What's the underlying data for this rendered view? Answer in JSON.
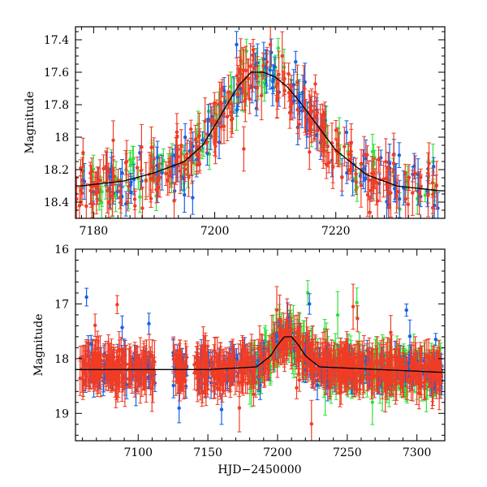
{
  "chart_data": [
    {
      "type": "scatter",
      "panel": "top",
      "title": "",
      "xlabel": "",
      "ylabel": "Magnitude",
      "xlim": [
        7177,
        7238
      ],
      "ylim": [
        18.5,
        17.32
      ],
      "y_inverted": true,
      "xticks": [
        7180,
        7200,
        7220
      ],
      "yticks": [
        17.4,
        17.6,
        17.8,
        18,
        18.2,
        18.4
      ],
      "xtick_labels": [
        "7180",
        "7200",
        "7220"
      ],
      "ytick_labels": [
        "17.4",
        "17.6",
        "17.8",
        "18",
        "18.2",
        "18.4"
      ],
      "series": [
        {
          "name": "red",
          "color": "#f03c24",
          "errorbars": true,
          "x_range": [
            7177,
            7237
          ],
          "typical_error": 0.1
        },
        {
          "name": "blue",
          "color": "#1560e8",
          "errorbars": true,
          "x_range": [
            7178,
            7237
          ],
          "typical_error": 0.08
        },
        {
          "name": "green",
          "color": "#33e03a",
          "errorbars": true,
          "x_range": [
            7178,
            7237
          ],
          "typical_error": 0.08
        }
      ],
      "model_curve": {
        "name": "model",
        "color": "#000000",
        "x": [
          7178,
          7185,
          7190,
          7195,
          7198,
          7200,
          7202,
          7204,
          7206,
          7208,
          7210,
          7212,
          7214,
          7216,
          7218,
          7220,
          7225,
          7230,
          7237
        ],
        "y": [
          18.3,
          18.27,
          18.22,
          18.15,
          18.05,
          17.93,
          17.8,
          17.68,
          17.6,
          17.6,
          17.63,
          17.69,
          17.78,
          17.88,
          17.98,
          18.08,
          18.23,
          18.3,
          18.33
        ]
      }
    },
    {
      "type": "scatter",
      "panel": "bottom",
      "title": "",
      "xlabel": "HJD−2450000",
      "ylabel": "Magnitude",
      "xlim": [
        7055,
        7320
      ],
      "ylim": [
        19.5,
        16
      ],
      "y_inverted": true,
      "xticks": [
        7100,
        7150,
        7200,
        7250,
        7300
      ],
      "yticks": [
        16,
        17,
        18,
        19
      ],
      "xtick_labels": [
        "7100",
        "7150",
        "7200",
        "7250",
        "7300"
      ],
      "ytick_labels": [
        "16",
        "17",
        "18",
        "19"
      ],
      "series": [
        {
          "name": "red",
          "color": "#f03c24",
          "errorbars": true,
          "x_range": [
            7058,
            7318
          ],
          "typical_error": 0.3
        },
        {
          "name": "blue",
          "color": "#1560e8",
          "errorbars": true,
          "x_range": [
            7060,
            7318
          ],
          "typical_error": 0.2
        },
        {
          "name": "green",
          "color": "#33e03a",
          "errorbars": true,
          "x_range": [
            7180,
            7318
          ],
          "typical_error": 0.3
        }
      ],
      "model_curve": {
        "name": "model",
        "color": "#000000",
        "x": [
          7060,
          7150,
          7185,
          7195,
          7200,
          7205,
          7210,
          7215,
          7220,
          7230,
          7318
        ],
        "y": [
          18.2,
          18.2,
          18.15,
          17.95,
          17.75,
          17.6,
          17.6,
          17.75,
          17.95,
          18.15,
          18.25
        ]
      }
    }
  ]
}
